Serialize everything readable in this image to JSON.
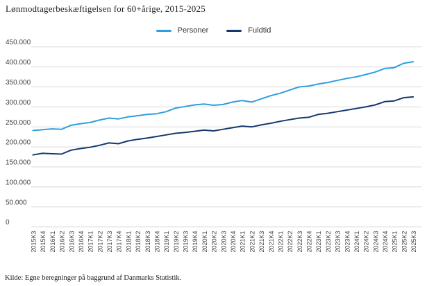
{
  "title": "Lønmodtagerbeskæftigelsen for 60+årige, 2015-2025",
  "source": "Kilde: Egne beregninger på baggrund af Danmarks Statistik.",
  "colors": {
    "personer": "#2D9FDE",
    "fuldtid": "#14386B",
    "grid": "#d9d9d9",
    "axis_text": "#404040",
    "background": "#ffffff"
  },
  "chart_data": {
    "type": "line",
    "title": "Lønmodtagerbeskæftigelsen for 60+årige, 2015-2025",
    "xlabel": "",
    "ylabel": "",
    "ylim": [
      0,
      450000
    ],
    "grid": true,
    "legend_position": "top-center",
    "ytick_labels": [
      "0",
      "50.000",
      "100.000",
      "150.000",
      "200.000",
      "250.000",
      "300.000",
      "350.000",
      "400.000",
      "450.000"
    ],
    "ytick_values": [
      0,
      50000,
      100000,
      150000,
      200000,
      250000,
      300000,
      350000,
      400000,
      450000
    ],
    "categories": [
      "2015K3",
      "2015K4",
      "2016K1",
      "2016K2",
      "2016K3",
      "2016K4",
      "2017K1",
      "2017K2",
      "2017K3",
      "2017K4",
      "2018K1",
      "2018K2",
      "2018K3",
      "2018K4",
      "2019K1",
      "2019K2",
      "2019K3",
      "2019K4",
      "2020K1",
      "2020K2",
      "2020K3",
      "2020K4",
      "2021K1",
      "2021K2",
      "2021K3",
      "2021K4",
      "2022K1",
      "2022K2",
      "2022K3",
      "2022K4",
      "2023K1",
      "2023K2",
      "2023K3",
      "2023K4",
      "2024K1",
      "2024K2",
      "2024K3",
      "2024K4",
      "2025K1",
      "2025K2",
      "2025K3"
    ],
    "series": [
      {
        "name": "Personer",
        "color": "#2D9FDE",
        "values": [
          241000,
          243000,
          245000,
          244000,
          254000,
          258000,
          261000,
          267000,
          272000,
          270000,
          275000,
          278000,
          281000,
          283000,
          288000,
          297000,
          301000,
          305000,
          307000,
          304000,
          306000,
          312000,
          316000,
          312000,
          320000,
          328000,
          334000,
          342000,
          350000,
          352000,
          357000,
          361000,
          366000,
          371000,
          375000,
          381000,
          387000,
          396000,
          398000,
          409000,
          413000
        ]
      },
      {
        "name": "Fuldtid",
        "color": "#14386B",
        "values": [
          180000,
          184000,
          183000,
          182000,
          192000,
          196000,
          199000,
          204000,
          210000,
          208000,
          215000,
          219000,
          222000,
          226000,
          230000,
          234000,
          236000,
          239000,
          242000,
          240000,
          244000,
          248000,
          252000,
          250000,
          255000,
          259000,
          264000,
          268000,
          272000,
          274000,
          281000,
          284000,
          288000,
          292000,
          296000,
          300000,
          305000,
          313000,
          315000,
          323000,
          325000
        ]
      }
    ]
  }
}
